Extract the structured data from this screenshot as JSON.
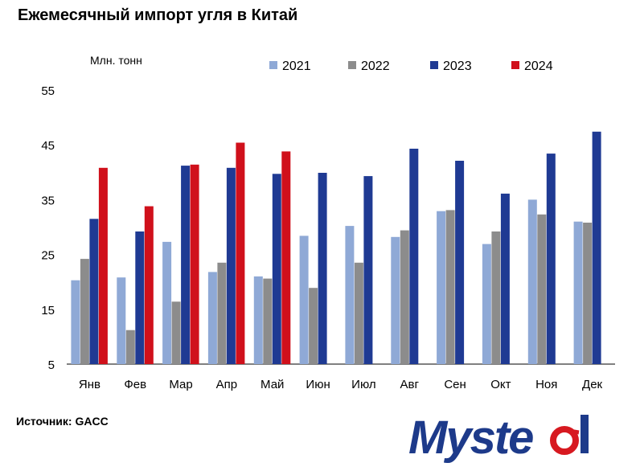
{
  "header": {
    "title": "Ежемесячный импорт угля в Китай"
  },
  "source": "Источник: GACC",
  "logo": {
    "text": "Mysteel",
    "color": "#1d3a8a",
    "accent": "#d71920"
  },
  "chart_data": {
    "type": "bar",
    "title": "Ежемесячный импорт угля в Китай",
    "ylabel": "Млн. тонн",
    "xlabel": "",
    "ylim": [
      5,
      55
    ],
    "yticks": [
      5,
      15,
      25,
      35,
      45,
      55
    ],
    "grid": false,
    "legend_position": "top",
    "categories": [
      "Янв",
      "Фев",
      "Мар",
      "Апр",
      "Май",
      "Июн",
      "Июл",
      "Авг",
      "Сен",
      "Окт",
      "Ноя",
      "Дек"
    ],
    "series": [
      {
        "name": "2021",
        "color": "#8fa9d6",
        "values": [
          20.3,
          20.8,
          27.3,
          21.8,
          21.0,
          28.4,
          30.2,
          28.2,
          32.9,
          26.9,
          35.0,
          31.0
        ]
      },
      {
        "name": "2022",
        "color": "#8c8c8c",
        "values": [
          24.2,
          11.2,
          16.4,
          23.5,
          20.6,
          18.9,
          23.5,
          29.4,
          33.1,
          29.2,
          32.3,
          30.8
        ]
      },
      {
        "name": "2023",
        "color": "#1f3a93",
        "values": [
          31.5,
          29.2,
          41.2,
          40.8,
          39.7,
          39.9,
          39.3,
          44.3,
          42.1,
          36.1,
          43.4,
          47.4
        ]
      },
      {
        "name": "2024",
        "color": "#d0101b",
        "values": [
          40.8,
          33.8,
          41.4,
          45.4,
          43.8,
          null,
          null,
          null,
          null,
          null,
          null,
          null
        ]
      }
    ]
  }
}
